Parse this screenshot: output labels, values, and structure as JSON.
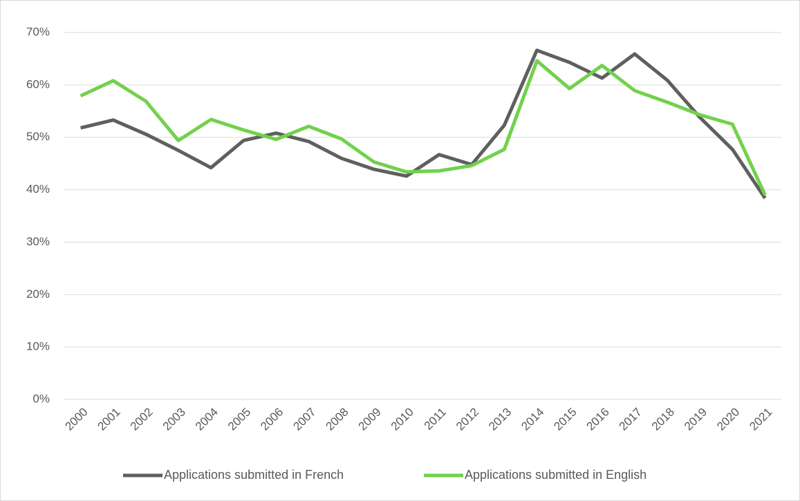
{
  "chart_data": {
    "type": "line",
    "categories": [
      "2000",
      "2001",
      "2002",
      "2003",
      "2004",
      "2005",
      "2006",
      "2007",
      "2008",
      "2009",
      "2010",
      "2011",
      "2012",
      "2013",
      "2014",
      "2015",
      "2016",
      "2017",
      "2018",
      "2019",
      "2020",
      "2021"
    ],
    "series": [
      {
        "name": "Applications submitted in French",
        "color": "#5f5f5f",
        "values": [
          51.8,
          53.3,
          50.6,
          47.5,
          44.2,
          49.4,
          50.8,
          49.2,
          46.0,
          43.9,
          42.6,
          46.7,
          44.8,
          52.3,
          66.6,
          64.3,
          61.3,
          65.9,
          60.9,
          53.8,
          47.7,
          38.4
        ]
      },
      {
        "name": "Applications submitted in English",
        "color": "#72d14c",
        "values": [
          57.9,
          60.8,
          56.9,
          49.4,
          53.4,
          51.4,
          49.6,
          52.1,
          49.7,
          45.3,
          43.4,
          43.6,
          44.6,
          47.7,
          64.6,
          59.3,
          63.7,
          58.9,
          56.7,
          54.3,
          52.5,
          39.0
        ]
      }
    ],
    "ylim": [
      0,
      70
    ],
    "yticks": [
      {
        "value": 0,
        "label": "0%"
      },
      {
        "value": 10,
        "label": "10%"
      },
      {
        "value": 20,
        "label": "20%"
      },
      {
        "value": 30,
        "label": "30%"
      },
      {
        "value": 40,
        "label": "40%"
      },
      {
        "value": 50,
        "label": "50%"
      },
      {
        "value": 60,
        "label": "60%"
      },
      {
        "value": 70,
        "label": "70%"
      }
    ],
    "grid": true,
    "legend": "bottom"
  }
}
